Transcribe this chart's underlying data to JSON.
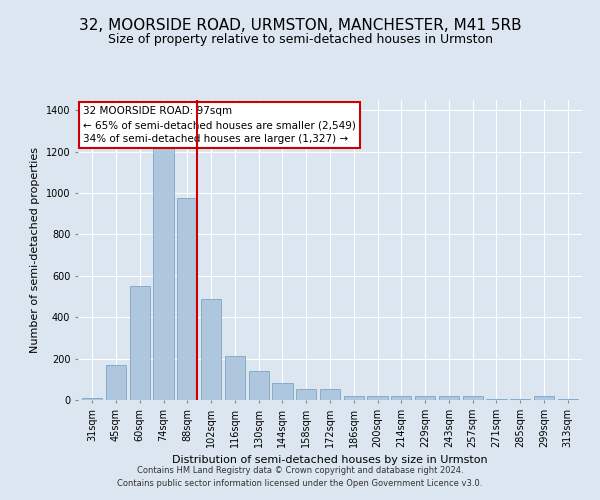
{
  "title": "32, MOORSIDE ROAD, URMSTON, MANCHESTER, M41 5RB",
  "subtitle": "Size of property relative to semi-detached houses in Urmston",
  "xlabel": "Distribution of semi-detached houses by size in Urmston",
  "ylabel": "Number of semi-detached properties",
  "footer_line1": "Contains HM Land Registry data © Crown copyright and database right 2024.",
  "footer_line2": "Contains public sector information licensed under the Open Government Licence v3.0.",
  "categories": [
    "31sqm",
    "45sqm",
    "60sqm",
    "74sqm",
    "88sqm",
    "102sqm",
    "116sqm",
    "130sqm",
    "144sqm",
    "158sqm",
    "172sqm",
    "186sqm",
    "200sqm",
    "214sqm",
    "229sqm",
    "243sqm",
    "257sqm",
    "271sqm",
    "285sqm",
    "299sqm",
    "313sqm"
  ],
  "values": [
    10,
    170,
    550,
    1240,
    975,
    490,
    215,
    140,
    80,
    55,
    55,
    20,
    20,
    20,
    20,
    20,
    20,
    5,
    5,
    20,
    5
  ],
  "bar_color": "#aec6de",
  "bar_edge_color": "#6b9dbf",
  "vline_color": "#cc0000",
  "vline_bar_index": 4,
  "bar_width": 0.85,
  "annotation_line1": "32 MOORSIDE ROAD: 97sqm",
  "annotation_line2": "← 65% of semi-detached houses are smaller (2,549)",
  "annotation_line3": "34% of semi-detached houses are larger (1,327) →",
  "annotation_box_facecolor": "#ffffff",
  "annotation_box_edgecolor": "#cc0000",
  "ylim": [
    0,
    1450
  ],
  "yticks": [
    0,
    200,
    400,
    600,
    800,
    1000,
    1200,
    1400
  ],
  "background_color": "#dce6f0",
  "plot_background_color": "#dce6f0",
  "grid_color": "#ffffff",
  "title_fontsize": 11,
  "subtitle_fontsize": 9,
  "axis_label_fontsize": 8,
  "tick_fontsize": 7,
  "ylabel_fontsize": 8,
  "annotation_fontsize": 7.5,
  "footer_fontsize": 6
}
